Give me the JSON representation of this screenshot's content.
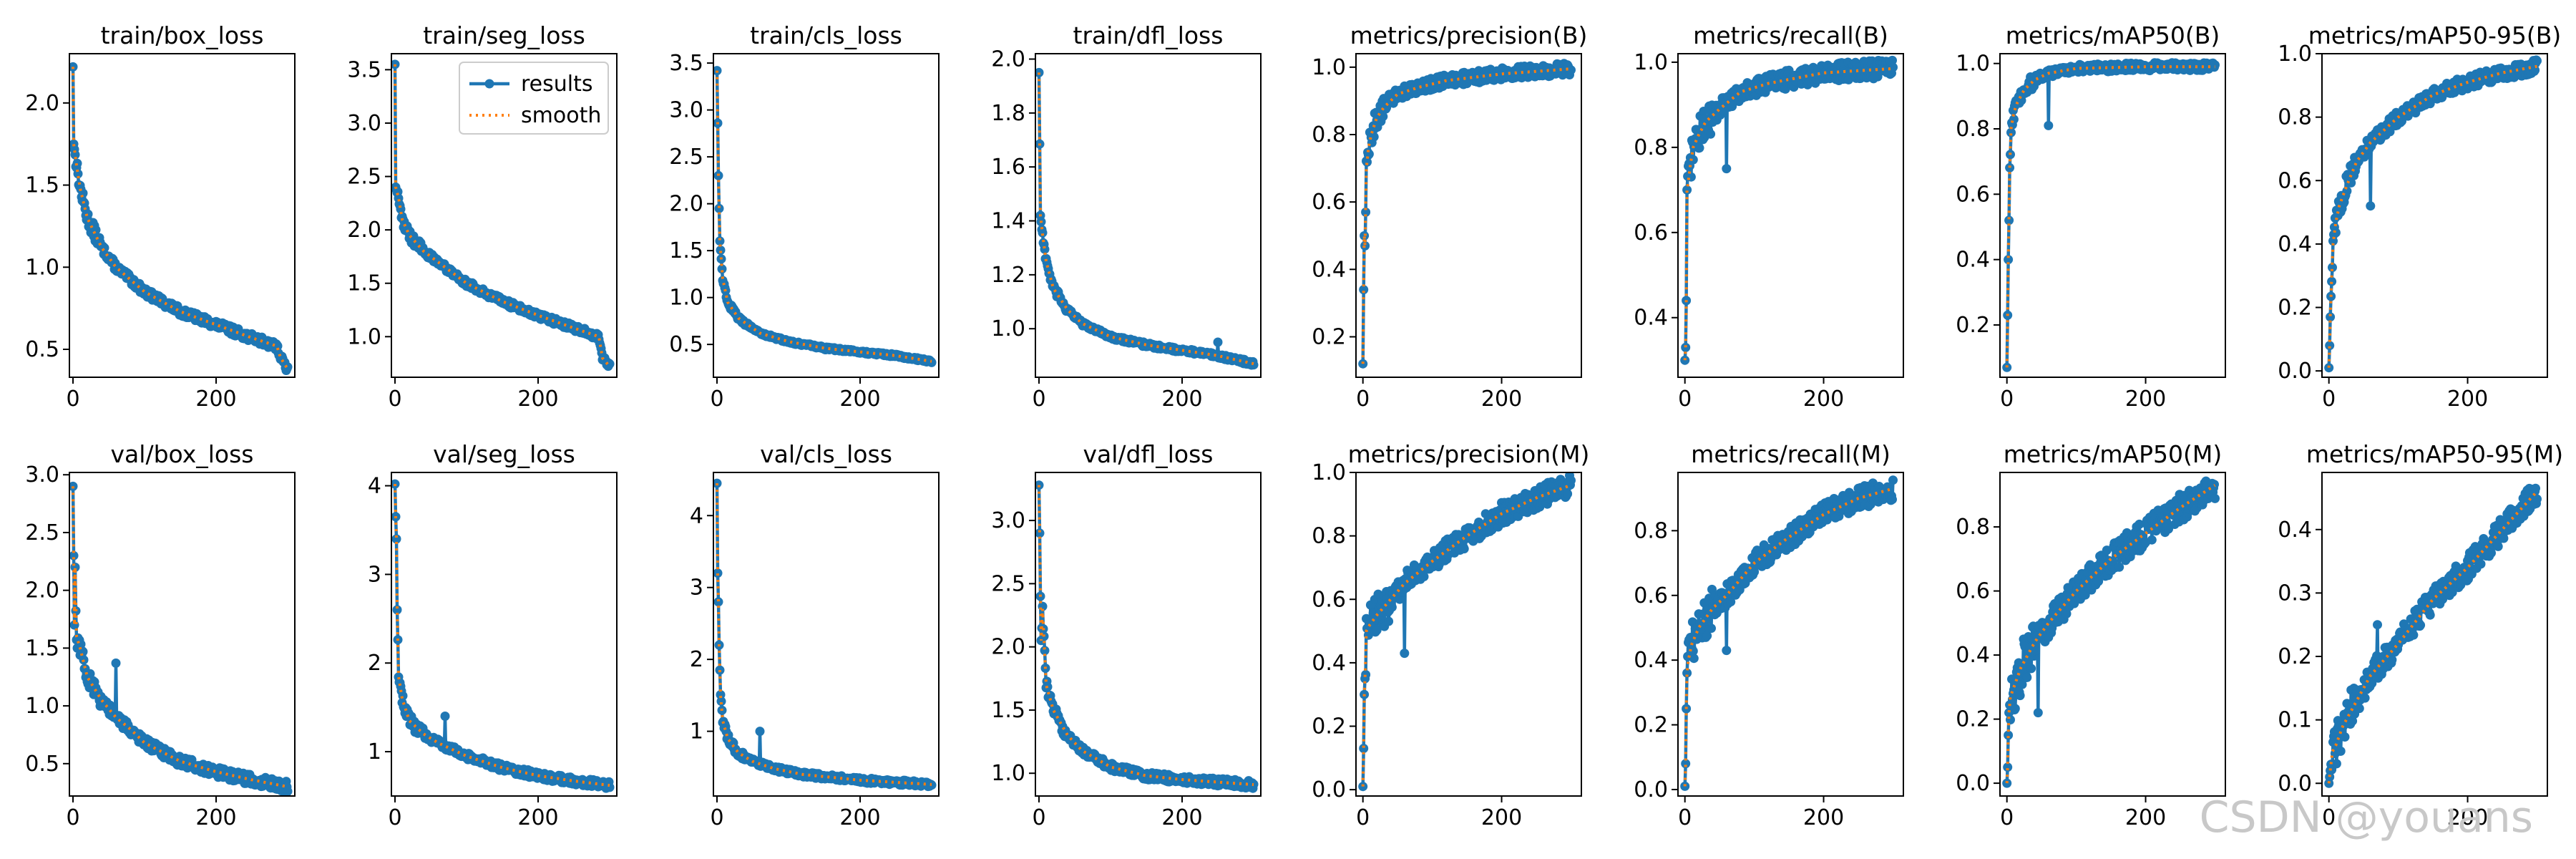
{
  "colors": {
    "results": "#1f77b4",
    "smooth": "#ff7f0e",
    "axes": "#000000",
    "watermark": "#c8c8c8"
  },
  "watermark": "CSDN @youans",
  "legend": {
    "results": "results",
    "smooth": "smooth",
    "placement": "upper right of train/seg_loss"
  },
  "chart_data": [
    {
      "type": "line",
      "title": "train/box_loss",
      "xlim": [
        -5,
        310
      ],
      "ylim": [
        0.33,
        2.3
      ],
      "x_ticks": [
        0,
        200
      ],
      "y_ticks": [
        0.5,
        1.0,
        1.5,
        2.0
      ],
      "anchors": [
        [
          0,
          2.22
        ],
        [
          1,
          1.75
        ],
        [
          5,
          1.62
        ],
        [
          10,
          1.48
        ],
        [
          20,
          1.3
        ],
        [
          40,
          1.12
        ],
        [
          60,
          1.0
        ],
        [
          100,
          0.85
        ],
        [
          150,
          0.73
        ],
        [
          200,
          0.65
        ],
        [
          250,
          0.57
        ],
        [
          285,
          0.52
        ],
        [
          290,
          0.45
        ],
        [
          300,
          0.38
        ]
      ],
      "noise": 0.025,
      "spikes": [],
      "mirror": false
    },
    {
      "type": "line",
      "title": "train/seg_loss",
      "xlim": [
        -5,
        310
      ],
      "ylim": [
        0.62,
        3.65
      ],
      "x_ticks": [
        0,
        200
      ],
      "y_ticks": [
        1.0,
        1.5,
        2.0,
        2.5,
        3.0,
        3.5
      ],
      "anchors": [
        [
          0,
          3.55
        ],
        [
          1,
          2.4
        ],
        [
          5,
          2.3
        ],
        [
          10,
          2.1
        ],
        [
          20,
          1.95
        ],
        [
          40,
          1.8
        ],
        [
          60,
          1.7
        ],
        [
          100,
          1.5
        ],
        [
          150,
          1.33
        ],
        [
          200,
          1.2
        ],
        [
          250,
          1.08
        ],
        [
          285,
          1.0
        ],
        [
          290,
          0.8
        ],
        [
          300,
          0.72
        ]
      ],
      "noise": 0.03,
      "spikes": [],
      "mirror": false
    },
    {
      "type": "line",
      "title": "train/cls_loss",
      "xlim": [
        -5,
        310
      ],
      "ylim": [
        0.15,
        3.6
      ],
      "x_ticks": [
        0,
        200
      ],
      "y_ticks": [
        0.5,
        1.0,
        1.5,
        2.0,
        2.5,
        3.0,
        3.5
      ],
      "anchors": [
        [
          0,
          3.42
        ],
        [
          2,
          2.3
        ],
        [
          4,
          1.6
        ],
        [
          8,
          1.2
        ],
        [
          15,
          0.95
        ],
        [
          30,
          0.78
        ],
        [
          60,
          0.62
        ],
        [
          100,
          0.53
        ],
        [
          150,
          0.46
        ],
        [
          200,
          0.42
        ],
        [
          250,
          0.38
        ],
        [
          300,
          0.32
        ]
      ],
      "noise": 0.015,
      "spikes": [],
      "mirror": false
    },
    {
      "type": "line",
      "title": "train/dfl_loss",
      "xlim": [
        -5,
        310
      ],
      "ylim": [
        0.82,
        2.02
      ],
      "x_ticks": [
        0,
        200
      ],
      "y_ticks": [
        1.0,
        1.2,
        1.4,
        1.6,
        1.8,
        2.0
      ],
      "anchors": [
        [
          0,
          1.95
        ],
        [
          2,
          1.42
        ],
        [
          5,
          1.35
        ],
        [
          10,
          1.25
        ],
        [
          20,
          1.15
        ],
        [
          40,
          1.07
        ],
        [
          60,
          1.02
        ],
        [
          100,
          0.97
        ],
        [
          150,
          0.94
        ],
        [
          200,
          0.92
        ],
        [
          250,
          0.9
        ],
        [
          300,
          0.87
        ]
      ],
      "noise": 0.008,
      "spikes": [
        [
          250,
          0.95
        ]
      ],
      "mirror": false
    },
    {
      "type": "line",
      "title": "metrics/precision(B)",
      "xlim": [
        -10,
        315
      ],
      "ylim": [
        0.08,
        1.04
      ],
      "x_ticks": [
        0,
        200
      ],
      "y_ticks": [
        0.2,
        0.4,
        0.6,
        0.8,
        1.0
      ],
      "anchors": [
        [
          0,
          0.12
        ],
        [
          1,
          0.34
        ],
        [
          2,
          0.5
        ],
        [
          3,
          0.47
        ],
        [
          4,
          0.6
        ],
        [
          5,
          0.7
        ],
        [
          8,
          0.76
        ],
        [
          12,
          0.8
        ],
        [
          20,
          0.85
        ],
        [
          30,
          0.88
        ],
        [
          50,
          0.92
        ],
        [
          80,
          0.94
        ],
        [
          120,
          0.96
        ],
        [
          200,
          0.98
        ],
        [
          300,
          0.995
        ]
      ],
      "noise": 0.018,
      "spikes": [],
      "mirror": false
    },
    {
      "type": "line",
      "title": "metrics/recall(B)",
      "xlim": [
        -10,
        315
      ],
      "ylim": [
        0.26,
        1.02
      ],
      "x_ticks": [
        0,
        200
      ],
      "y_ticks": [
        0.4,
        0.6,
        0.8,
        1.0
      ],
      "anchors": [
        [
          0,
          0.3
        ],
        [
          1,
          0.33
        ],
        [
          2,
          0.44
        ],
        [
          3,
          0.7
        ],
        [
          5,
          0.72
        ],
        [
          8,
          0.76
        ],
        [
          12,
          0.8
        ],
        [
          20,
          0.83
        ],
        [
          30,
          0.86
        ],
        [
          50,
          0.89
        ],
        [
          80,
          0.93
        ],
        [
          120,
          0.95
        ],
        [
          200,
          0.975
        ],
        [
          300,
          0.985
        ]
      ],
      "noise": 0.022,
      "spikes": [
        [
          60,
          0.75
        ]
      ],
      "mirror": false
    },
    {
      "type": "line",
      "title": "metrics/mAP50(B)",
      "xlim": [
        -10,
        315
      ],
      "ylim": [
        0.04,
        1.03
      ],
      "x_ticks": [
        0,
        200
      ],
      "y_ticks": [
        0.2,
        0.4,
        0.6,
        0.8,
        1.0
      ],
      "anchors": [
        [
          0,
          0.07
        ],
        [
          1,
          0.23
        ],
        [
          2,
          0.4
        ],
        [
          3,
          0.52
        ],
        [
          4,
          0.68
        ],
        [
          6,
          0.8
        ],
        [
          10,
          0.85
        ],
        [
          15,
          0.88
        ],
        [
          25,
          0.92
        ],
        [
          40,
          0.95
        ],
        [
          60,
          0.97
        ],
        [
          100,
          0.985
        ],
        [
          200,
          0.99
        ],
        [
          300,
          0.99
        ]
      ],
      "noise": 0.012,
      "spikes": [
        [
          60,
          0.81
        ]
      ],
      "mirror": false
    },
    {
      "type": "line",
      "title": "metrics/mAP50-95(B)",
      "xlim": [
        -10,
        315
      ],
      "ylim": [
        -0.02,
        1.0
      ],
      "x_ticks": [
        0,
        200
      ],
      "y_ticks": [
        0.0,
        0.2,
        0.4,
        0.6,
        0.8,
        1.0
      ],
      "anchors": [
        [
          0,
          0.01
        ],
        [
          1,
          0.08
        ],
        [
          2,
          0.17
        ],
        [
          4,
          0.3
        ],
        [
          6,
          0.4
        ],
        [
          10,
          0.47
        ],
        [
          15,
          0.52
        ],
        [
          25,
          0.58
        ],
        [
          40,
          0.66
        ],
        [
          60,
          0.72
        ],
        [
          100,
          0.8
        ],
        [
          150,
          0.87
        ],
        [
          200,
          0.91
        ],
        [
          250,
          0.94
        ],
        [
          300,
          0.96
        ]
      ],
      "noise": 0.022,
      "spikes": [
        [
          60,
          0.52
        ]
      ],
      "mirror": false
    },
    {
      "type": "line",
      "title": "val/box_loss",
      "xlim": [
        -5,
        310
      ],
      "ylim": [
        0.22,
        3.02
      ],
      "x_ticks": [
        0,
        200
      ],
      "y_ticks": [
        0.5,
        1.0,
        1.5,
        2.0,
        2.5,
        3.0
      ],
      "anchors": [
        [
          0,
          2.9
        ],
        [
          1,
          2.3
        ],
        [
          2,
          1.7
        ],
        [
          3,
          2.2
        ],
        [
          5,
          1.6
        ],
        [
          10,
          1.5
        ],
        [
          20,
          1.25
        ],
        [
          40,
          1.05
        ],
        [
          60,
          0.9
        ],
        [
          80,
          0.8
        ],
        [
          100,
          0.68
        ],
        [
          150,
          0.52
        ],
        [
          200,
          0.43
        ],
        [
          250,
          0.36
        ],
        [
          300,
          0.3
        ]
      ],
      "noise": 0.045,
      "spikes": [
        [
          60,
          1.37
        ]
      ],
      "mirror": false
    },
    {
      "type": "line",
      "title": "val/seg_loss",
      "xlim": [
        -5,
        310
      ],
      "ylim": [
        0.5,
        4.15
      ],
      "x_ticks": [
        0,
        200
      ],
      "y_ticks": [
        1,
        2,
        3,
        4
      ],
      "anchors": [
        [
          0,
          4.02
        ],
        [
          1,
          3.65
        ],
        [
          2,
          3.4
        ],
        [
          3,
          2.6
        ],
        [
          5,
          1.85
        ],
        [
          10,
          1.6
        ],
        [
          20,
          1.35
        ],
        [
          40,
          1.2
        ],
        [
          60,
          1.1
        ],
        [
          100,
          0.95
        ],
        [
          150,
          0.82
        ],
        [
          200,
          0.73
        ],
        [
          250,
          0.67
        ],
        [
          300,
          0.62
        ]
      ],
      "noise": 0.04,
      "spikes": [
        [
          70,
          1.4
        ]
      ],
      "mirror": false
    },
    {
      "type": "line",
      "title": "val/cls_loss",
      "xlim": [
        -5,
        310
      ],
      "ylim": [
        0.1,
        4.6
      ],
      "x_ticks": [
        0,
        200
      ],
      "y_ticks": [
        1,
        2,
        3,
        4
      ],
      "anchors": [
        [
          0,
          4.45
        ],
        [
          1,
          3.2
        ],
        [
          2,
          2.8
        ],
        [
          3,
          2.2
        ],
        [
          5,
          1.5
        ],
        [
          8,
          1.15
        ],
        [
          15,
          0.9
        ],
        [
          30,
          0.7
        ],
        [
          50,
          0.58
        ],
        [
          80,
          0.48
        ],
        [
          120,
          0.4
        ],
        [
          200,
          0.32
        ],
        [
          300,
          0.26
        ]
      ],
      "noise": 0.035,
      "spikes": [
        [
          60,
          1.0
        ]
      ],
      "mirror": false
    },
    {
      "type": "line",
      "title": "val/dfl_loss",
      "xlim": [
        -5,
        310
      ],
      "ylim": [
        0.82,
        3.38
      ],
      "x_ticks": [
        0,
        200
      ],
      "y_ticks": [
        1.0,
        1.5,
        2.0,
        2.5,
        3.0
      ],
      "anchors": [
        [
          0,
          3.28
        ],
        [
          1,
          2.9
        ],
        [
          2,
          2.4
        ],
        [
          3,
          2.05
        ],
        [
          5,
          2.3
        ],
        [
          10,
          1.7
        ],
        [
          20,
          1.5
        ],
        [
          40,
          1.3
        ],
        [
          60,
          1.18
        ],
        [
          100,
          1.05
        ],
        [
          150,
          0.98
        ],
        [
          200,
          0.95
        ],
        [
          250,
          0.93
        ],
        [
          300,
          0.91
        ]
      ],
      "noise": 0.03,
      "spikes": [],
      "mirror": false
    },
    {
      "type": "line",
      "title": "metrics/precision(M)",
      "xlim": [
        -10,
        315
      ],
      "ylim": [
        -0.02,
        1.0
      ],
      "x_ticks": [
        0,
        200
      ],
      "y_ticks": [
        0.0,
        0.2,
        0.4,
        0.6,
        0.8,
        1.0
      ],
      "anchors": [
        [
          0,
          0.01
        ],
        [
          1,
          0.13
        ],
        [
          2,
          0.3
        ],
        [
          3,
          0.35
        ],
        [
          5,
          0.5
        ],
        [
          10,
          0.52
        ],
        [
          20,
          0.55
        ],
        [
          40,
          0.6
        ],
        [
          60,
          0.65
        ],
        [
          100,
          0.72
        ],
        [
          150,
          0.8
        ],
        [
          200,
          0.87
        ],
        [
          250,
          0.92
        ],
        [
          300,
          0.96
        ]
      ],
      "noise": 0.035,
      "spikes": [
        [
          60,
          0.43
        ]
      ],
      "mirror": false
    },
    {
      "type": "line",
      "title": "metrics/recall(M)",
      "xlim": [
        -10,
        315
      ],
      "ylim": [
        -0.02,
        0.98
      ],
      "x_ticks": [
        0,
        200
      ],
      "y_ticks": [
        0.0,
        0.2,
        0.4,
        0.6,
        0.8
      ],
      "anchors": [
        [
          0,
          0.01
        ],
        [
          1,
          0.08
        ],
        [
          2,
          0.25
        ],
        [
          3,
          0.36
        ],
        [
          5,
          0.4
        ],
        [
          10,
          0.45
        ],
        [
          20,
          0.5
        ],
        [
          40,
          0.56
        ],
        [
          60,
          0.6
        ],
        [
          100,
          0.7
        ],
        [
          150,
          0.78
        ],
        [
          200,
          0.85
        ],
        [
          250,
          0.9
        ],
        [
          300,
          0.93
        ]
      ],
      "noise": 0.035,
      "spikes": [
        [
          60,
          0.43
        ]
      ],
      "mirror": false
    },
    {
      "type": "line",
      "title": "metrics/mAP50(M)",
      "xlim": [
        -10,
        315
      ],
      "ylim": [
        -0.04,
        0.97
      ],
      "x_ticks": [
        0,
        200
      ],
      "y_ticks": [
        0.0,
        0.2,
        0.4,
        0.6,
        0.8
      ],
      "anchors": [
        [
          0,
          0.0
        ],
        [
          1,
          0.05
        ],
        [
          2,
          0.15
        ],
        [
          3,
          0.22
        ],
        [
          5,
          0.27
        ],
        [
          10,
          0.3
        ],
        [
          20,
          0.36
        ],
        [
          40,
          0.44
        ],
        [
          60,
          0.5
        ],
        [
          100,
          0.6
        ],
        [
          150,
          0.7
        ],
        [
          200,
          0.78
        ],
        [
          250,
          0.86
        ],
        [
          300,
          0.93
        ]
      ],
      "noise": 0.045,
      "spikes": [
        [
          45,
          0.22
        ]
      ],
      "mirror": false
    },
    {
      "type": "line",
      "title": "metrics/mAP50-95(M)",
      "xlim": [
        -10,
        315
      ],
      "ylim": [
        -0.02,
        0.49
      ],
      "x_ticks": [
        0,
        200
      ],
      "y_ticks": [
        0.0,
        0.1,
        0.2,
        0.3,
        0.4
      ],
      "anchors": [
        [
          0,
          0.0
        ],
        [
          2,
          0.02
        ],
        [
          5,
          0.05
        ],
        [
          10,
          0.06
        ],
        [
          20,
          0.09
        ],
        [
          40,
          0.13
        ],
        [
          60,
          0.17
        ],
        [
          100,
          0.22
        ],
        [
          150,
          0.29
        ],
        [
          200,
          0.34
        ],
        [
          250,
          0.4
        ],
        [
          300,
          0.46
        ]
      ],
      "noise": 0.02,
      "spikes": [
        [
          70,
          0.25
        ]
      ],
      "mirror": false
    }
  ]
}
